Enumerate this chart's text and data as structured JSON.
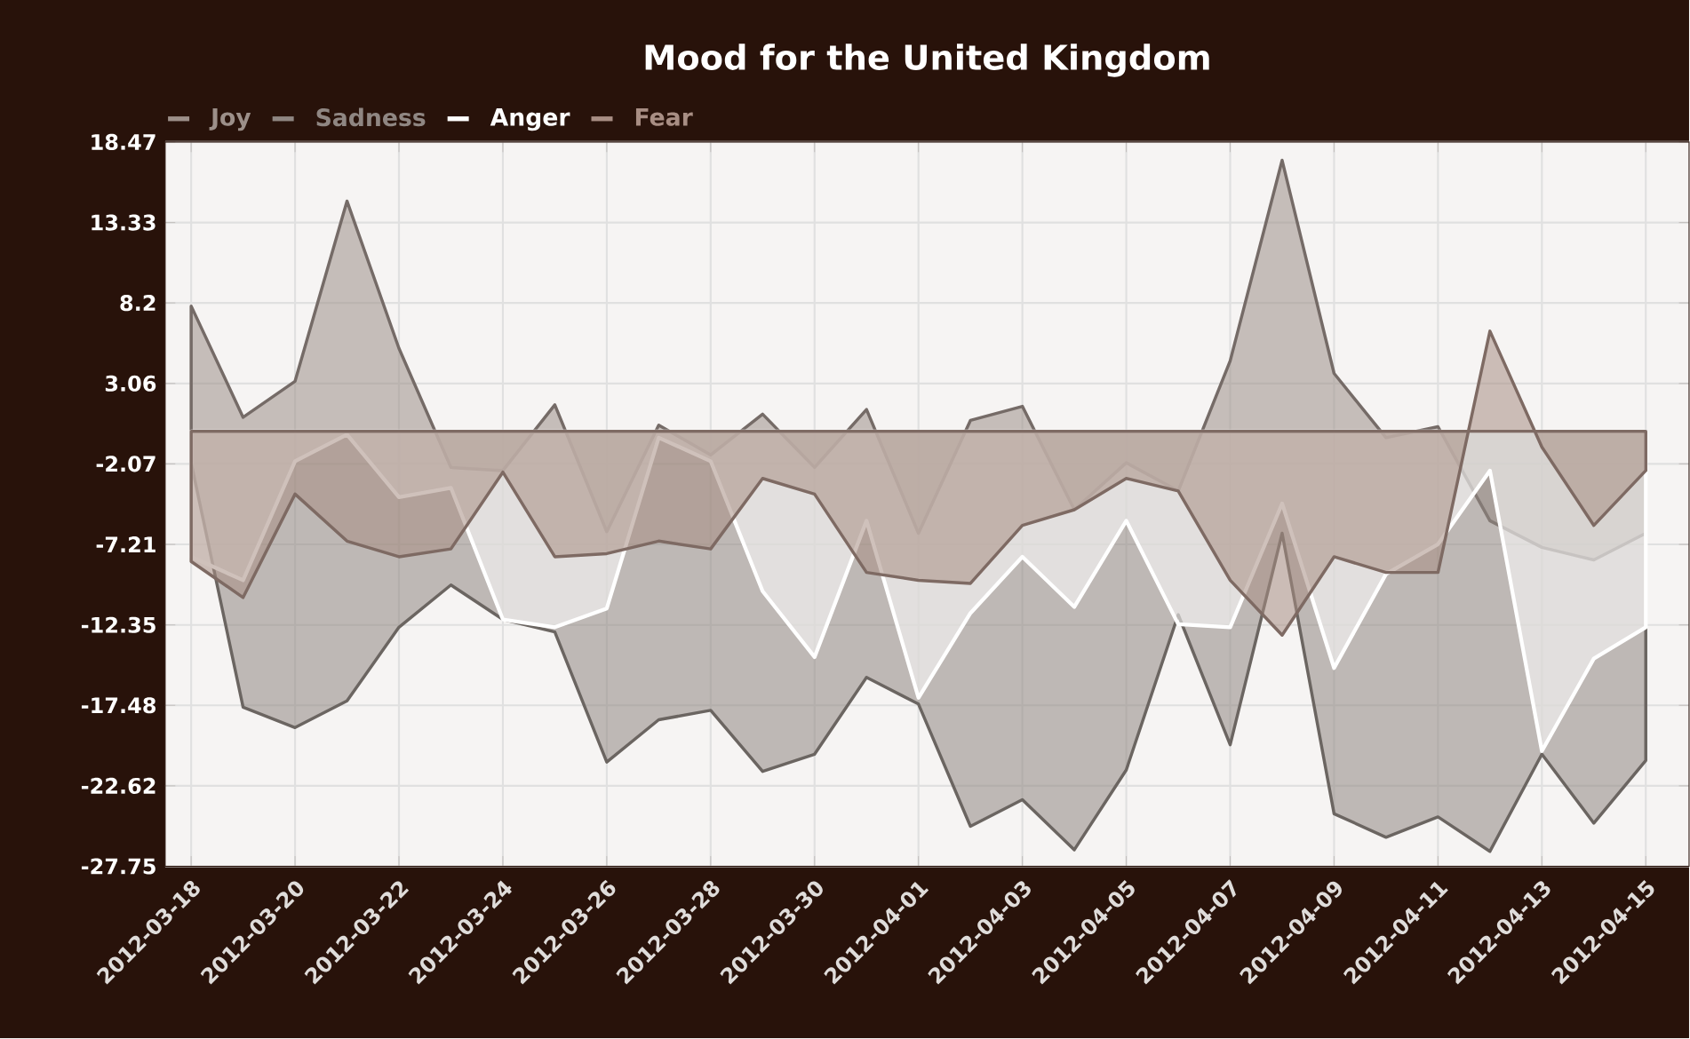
{
  "chart_data": {
    "type": "area",
    "title": "Mood for the United Kingdom",
    "x": [
      "2012-03-18",
      "2012-03-19",
      "2012-03-20",
      "2012-03-21",
      "2012-03-22",
      "2012-03-23",
      "2012-03-24",
      "2012-03-25",
      "2012-03-26",
      "2012-03-27",
      "2012-03-28",
      "2012-03-29",
      "2012-03-30",
      "2012-03-31",
      "2012-04-01",
      "2012-04-02",
      "2012-04-03",
      "2012-04-04",
      "2012-04-05",
      "2012-04-06",
      "2012-04-07",
      "2012-04-08",
      "2012-04-09",
      "2012-04-10",
      "2012-04-11",
      "2012-04-12",
      "2012-04-13",
      "2012-04-14",
      "2012-04-15"
    ],
    "series": [
      {
        "name": "Joy",
        "color": "#9c8f89",
        "values": [
          8.0,
          0.9,
          3.2,
          14.7,
          5.3,
          -2.3,
          -2.5,
          1.7,
          -6.4,
          0.4,
          -1.5,
          1.1,
          -2.3,
          1.4,
          -6.5,
          0.7,
          1.6,
          -5.0,
          -2.0,
          -3.8,
          4.5,
          17.3,
          3.7,
          -0.4,
          0.3,
          -5.7,
          -7.4,
          -8.2,
          -6.5
        ]
      },
      {
        "name": "Sadness",
        "color": "#8f8682",
        "values": [
          -2.0,
          -17.6,
          -18.9,
          -17.2,
          -12.5,
          -9.8,
          -12.0,
          -12.8,
          -21.1,
          -18.4,
          -17.8,
          -21.7,
          -20.6,
          -15.7,
          -17.4,
          -25.2,
          -23.5,
          -26.7,
          -21.6,
          -11.7,
          -20.0,
          -6.5,
          -24.4,
          -25.9,
          -24.6,
          -26.8,
          -20.6,
          -25.0,
          -21.0
        ]
      },
      {
        "name": "Anger",
        "color": "#ffffff",
        "values": [
          -8.0,
          -9.5,
          -1.9,
          -0.2,
          -4.2,
          -3.6,
          -12.0,
          -12.5,
          -11.3,
          -0.4,
          -1.9,
          -10.2,
          -14.4,
          -5.7,
          -17.0,
          -11.6,
          -8.0,
          -11.2,
          -5.7,
          -12.3,
          -12.5,
          -4.6,
          -15.1,
          -9.1,
          -7.2,
          -2.5,
          -20.4,
          -14.5,
          -12.5
        ]
      },
      {
        "name": "Fear",
        "color": "#a88e84",
        "values": [
          -8.3,
          -10.6,
          -4.0,
          -7.0,
          -8.0,
          -7.5,
          -2.6,
          -8.0,
          -7.8,
          -7.0,
          -7.5,
          -3.0,
          -4.0,
          -9.0,
          -9.5,
          -9.7,
          -6.0,
          -5.0,
          -3.0,
          -3.8,
          -9.5,
          -13.0,
          -8.0,
          -9.0,
          -9.0,
          6.4,
          -1.0,
          -6.0,
          -2.5
        ]
      }
    ],
    "xlim": [
      "2012-03-17T12:00",
      "2012-04-15T20:00"
    ],
    "xticks": [
      "2012-03-18",
      "2012-03-20",
      "2012-03-22",
      "2012-03-24",
      "2012-03-26",
      "2012-03-28",
      "2012-03-30",
      "2012-04-01",
      "2012-04-03",
      "2012-04-05",
      "2012-04-07",
      "2012-04-09",
      "2012-04-11",
      "2012-04-13",
      "2012-04-15"
    ],
    "ylim": [
      -27.75,
      18.47
    ],
    "yticks": [
      18.47,
      13.33,
      8.2,
      3.06,
      -2.07,
      -7.21,
      -12.35,
      -17.48,
      -22.62,
      -27.75
    ],
    "grid": true,
    "legend": "top left",
    "marker": "none",
    "line_style": "solid"
  }
}
